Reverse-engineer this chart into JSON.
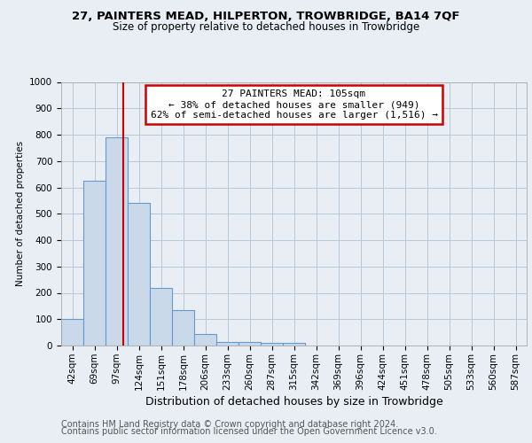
{
  "title1": "27, PAINTERS MEAD, HILPERTON, TROWBRIDGE, BA14 7QF",
  "title2": "Size of property relative to detached houses in Trowbridge",
  "xlabel": "Distribution of detached houses by size in Trowbridge",
  "ylabel": "Number of detached properties",
  "categories": [
    "42sqm",
    "69sqm",
    "97sqm",
    "124sqm",
    "151sqm",
    "178sqm",
    "206sqm",
    "233sqm",
    "260sqm",
    "287sqm",
    "315sqm",
    "342sqm",
    "369sqm",
    "396sqm",
    "424sqm",
    "451sqm",
    "478sqm",
    "505sqm",
    "533sqm",
    "560sqm",
    "587sqm"
  ],
  "values": [
    100,
    625,
    790,
    540,
    220,
    135,
    45,
    15,
    15,
    10,
    10,
    0,
    0,
    0,
    0,
    0,
    0,
    0,
    0,
    0,
    0
  ],
  "bar_color": "#c9d9ea",
  "bar_edge_color": "#6699cc",
  "vline_color": "#cc0000",
  "vline_x": 2.3,
  "annotation_text": "27 PAINTERS MEAD: 105sqm\n← 38% of detached houses are smaller (949)\n62% of semi-detached houses are larger (1,516) →",
  "annotation_box_color": "#ffffff",
  "annotation_box_edge": "#cc0000",
  "ylim": [
    0,
    1000
  ],
  "yticks": [
    0,
    100,
    200,
    300,
    400,
    500,
    600,
    700,
    800,
    900,
    1000
  ],
  "footer1": "Contains HM Land Registry data © Crown copyright and database right 2024.",
  "footer2": "Contains public sector information licensed under the Open Government Licence v3.0.",
  "bg_color": "#e8eef4",
  "plot_bg_color": "#e8eef4",
  "grid_color": "#b8c8d8",
  "title_fontsize": 9.5,
  "subtitle_fontsize": 8.5,
  "xlabel_fontsize": 9,
  "ylabel_fontsize": 7.5,
  "tick_fontsize": 7.5,
  "annot_fontsize": 8,
  "footer_fontsize": 7
}
